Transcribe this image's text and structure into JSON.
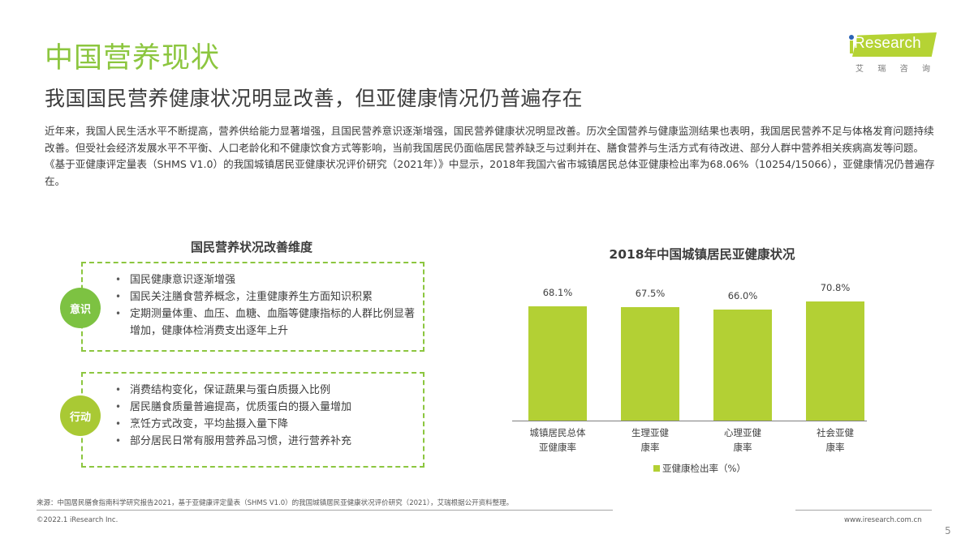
{
  "header": {
    "title": "中国营养现状",
    "subtitle": "我国国民营养健康状况明显改善，但亚健康情况仍普遍存在"
  },
  "logo": {
    "brand": "iResearch",
    "brand_rest": "Research",
    "chinese_chars": [
      "艾",
      "瑞",
      "咨",
      "询"
    ],
    "colors": {
      "badge": "#b5d334",
      "dot": "#2b64b5"
    }
  },
  "intro": {
    "text": "近年来，我国人民生活水平不断提高，营养供给能力显著增强，且国民营养意识逐渐增强，国民营养健康状况明显改善。历次全国营养与健康监测结果也表明，我国居民营养不足与体格发育问题持续改善。但受社会经济发展水平不平衡、人口老龄化和不健康饮食方式等影响，当前我国居民仍面临居民营养缺乏与过剩并在、膳食营养与生活方式有待改进、部分人群中营养相关疾病高发等问题。《基于亚健康评定量表（SHMS V1.0）的我国城镇居民亚健康状况评价研究（2021年）》中显示，2018年我国六省市城镇居民总体亚健康检出率为68.06%（10254/15066），亚健康情况仍普遍存在。"
  },
  "left_panel": {
    "title": "国民营养状况改善维度",
    "sections": [
      {
        "badge": "意识",
        "badge_color": "#7dc242",
        "items": [
          "国民健康意识逐渐增强",
          "国民关注膳食营养概念，注重健康养生方面知识积累",
          "定期测量体重、血压、血糖、血脂等健康指标的人群比例显著增加，健康体检消费支出逐年上升"
        ]
      },
      {
        "badge": "行动",
        "badge_color": "#a9c934",
        "items": [
          "消费结构变化，保证蔬果与蛋白质摄入比例",
          "居民膳食质量普遍提高，优质蛋白的摄入量增加",
          "烹饪方式改变，平均盐摄入量下降",
          "部分居民日常有服用营养品习惯，进行营养补充"
        ]
      }
    ],
    "border_color": "#8cc63f"
  },
  "chart_data": {
    "type": "bar",
    "title": "2018年中国城镇居民亚健康状况",
    "categories": [
      "城镇居民总体亚健康率",
      "生理亚健康率",
      "心理亚健康率",
      "社会亚健康率"
    ],
    "category_lines": [
      [
        "城镇居民总体",
        "亚健康率"
      ],
      [
        "生理亚健",
        "康率"
      ],
      [
        "心理亚健",
        "康率"
      ],
      [
        "社会亚健",
        "康率"
      ]
    ],
    "series": [
      {
        "name": "亚健康检出率（%）",
        "values": [
          68.1,
          67.5,
          66.0,
          70.8
        ],
        "color": "#b3d034"
      }
    ],
    "value_labels": [
      "68.1%",
      "67.5%",
      "66.0%",
      "70.8%"
    ],
    "xlabel": "",
    "ylabel": "",
    "grid": false,
    "legend_position": "bottom",
    "legend_label": "亚健康检出率（%）"
  },
  "footer": {
    "source": "来源：中国居民膳食指南科学研究报告2021，基于亚健康评定量表（SHMS V1.0）的我国城镇居民亚健康状况评价研究（2021），艾瑞根据公开资料整理。",
    "copyright": "©2022.1 iResearch Inc.",
    "website": "www.iresearch.com.cn",
    "page_number": "5"
  }
}
